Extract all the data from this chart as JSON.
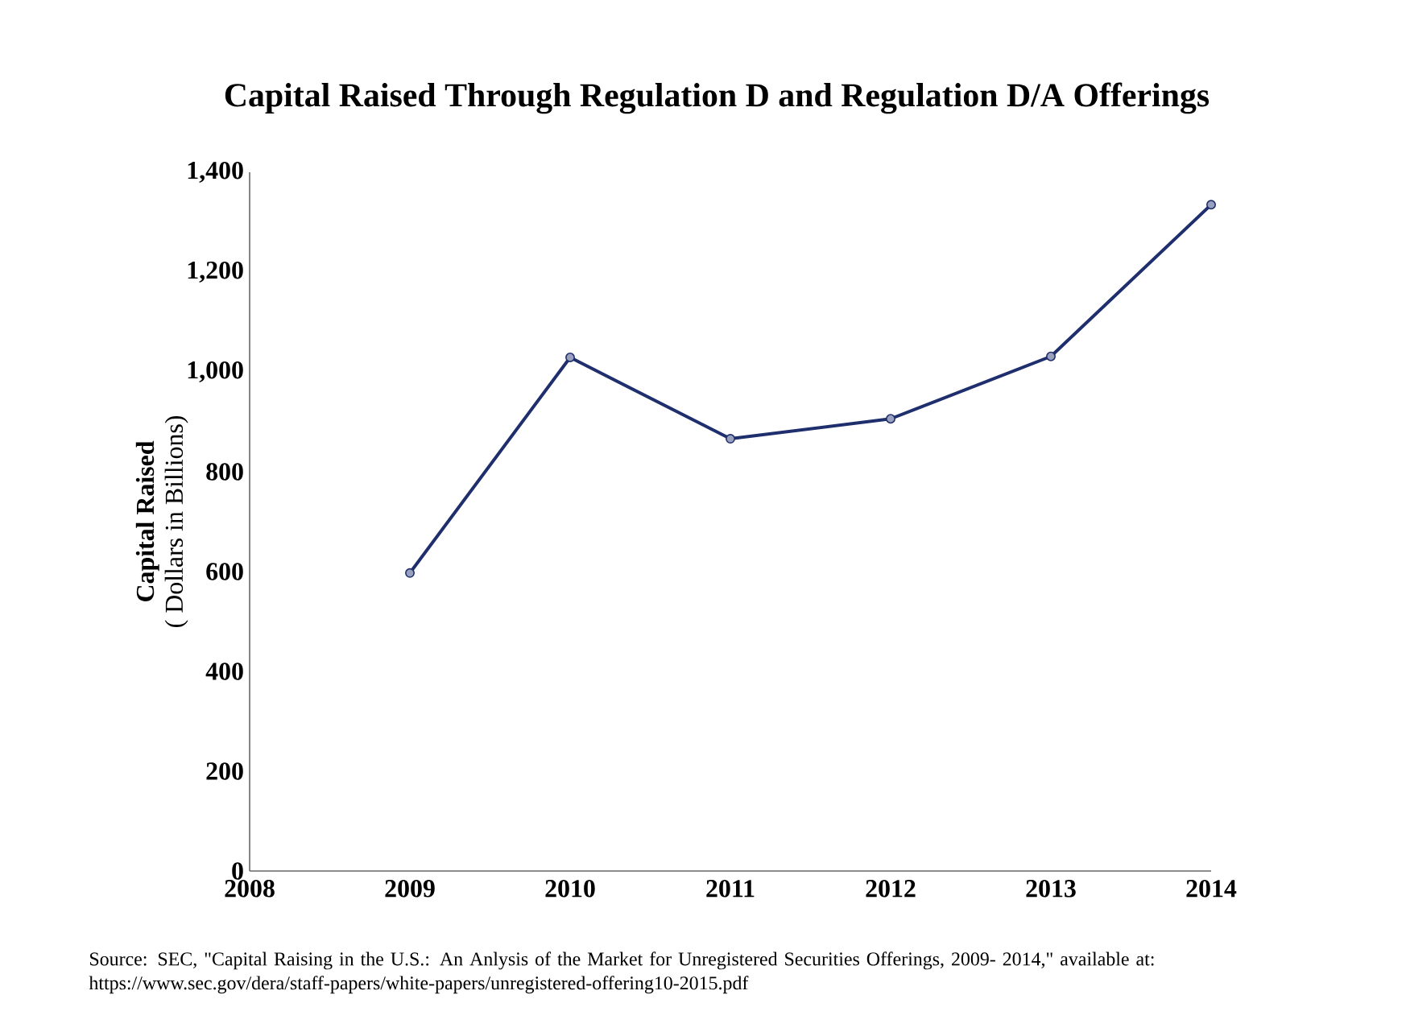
{
  "chart_data": {
    "type": "line",
    "title": "Capital Raised Through Regulation D and Regulation D/A Offerings",
    "ylabel": "**Capital Raised**\n( Dollars in Billions)",
    "x": [
      2009,
      2010,
      2011,
      2012,
      2013,
      2014
    ],
    "series": [
      {
        "color": "#1f2f6e",
        "values": [
          597,
          1029,
          866,
          906,
          1031,
          1335
        ]
      }
    ],
    "xlim": [
      2008,
      2014
    ],
    "xticks": [
      2008,
      2009,
      2010,
      2011,
      2012,
      2013,
      2014
    ],
    "ylim": [
      0,
      1400
    ],
    "yticks": [
      0,
      200,
      400,
      600,
      800,
      {
        "value": 1000,
        "label": "1,000"
      },
      {
        "value": 1200,
        "label": "1,200"
      },
      {
        "value": 1400,
        "label": "1,400"
      }
    ],
    "marker": "circle",
    "line_style": "solid",
    "grid": false,
    "annotations": [
      "Source: SEC, \"Capital Raising in the U.S.: An Anlysis of the Market for Unregistered Securities Offerings, 2009- 2014,\" available at: https://www.sec.gov/dera/staff-papers/white-papers/unregistered-offering10-2015.pdf"
    ]
  }
}
